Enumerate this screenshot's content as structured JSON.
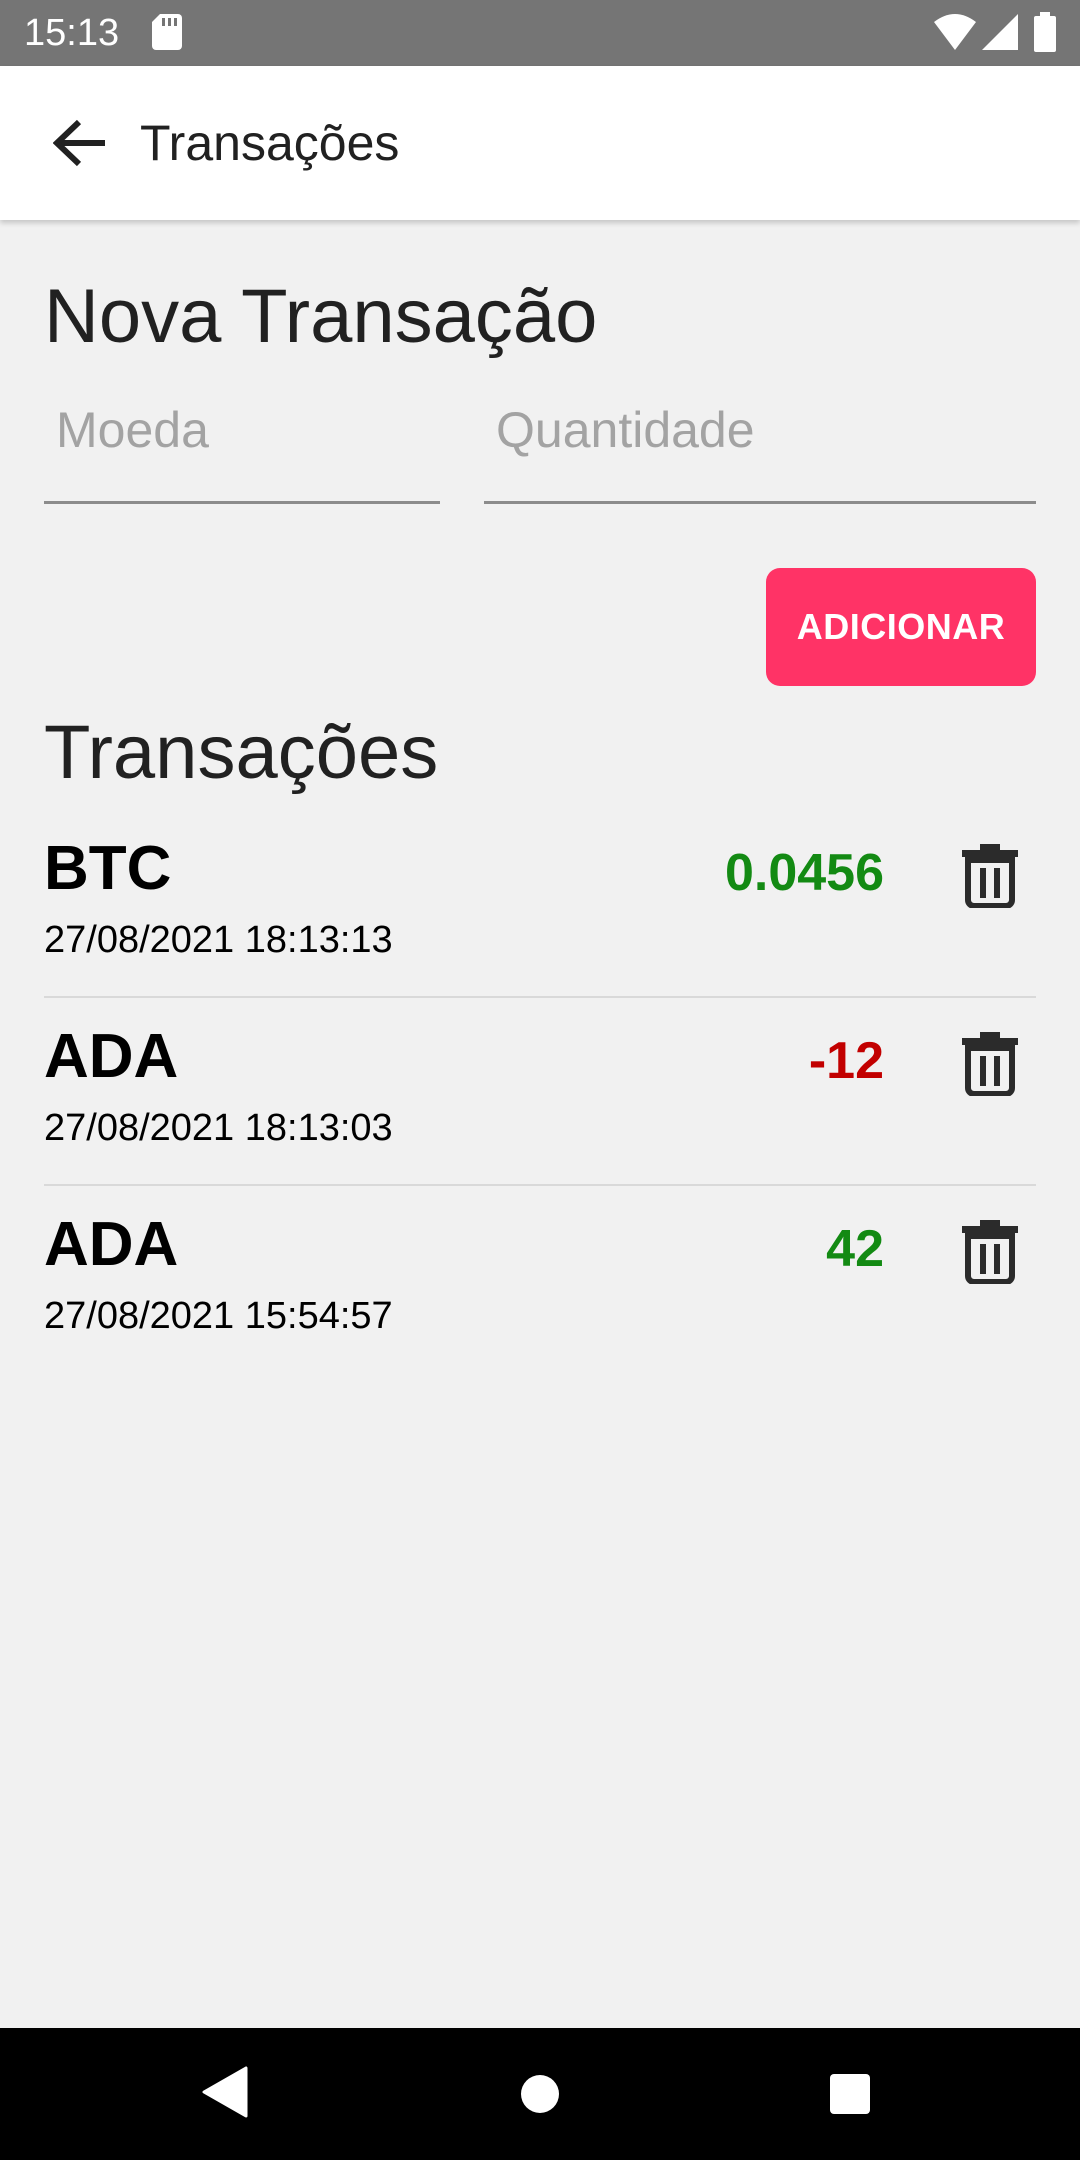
{
  "status_bar": {
    "time": "15:13"
  },
  "app_bar": {
    "title": "Transações"
  },
  "form": {
    "title": "Nova Transação",
    "coin_field": {
      "value": "",
      "placeholder": "Moeda"
    },
    "quantity_field": {
      "value": "",
      "placeholder": "Quantidade"
    },
    "add_button_label": "ADICIONAR"
  },
  "list": {
    "title": "Transações",
    "items": [
      {
        "coin": "BTC",
        "date": "27/08/2021 18:13:13",
        "amount": "0.0456",
        "sign": "positive"
      },
      {
        "coin": "ADA",
        "date": "27/08/2021 18:13:03",
        "amount": "-12",
        "sign": "negative"
      },
      {
        "coin": "ADA",
        "date": "27/08/2021 15:54:57",
        "amount": "42",
        "sign": "positive"
      }
    ]
  },
  "colors": {
    "accent": "#ff3366",
    "positive": "#138a13",
    "negative": "#c20000",
    "status_bar": "#757575"
  },
  "icons": {
    "back": "arrow-left-icon",
    "delete": "trash-icon",
    "nav_back": "triangle-back-icon",
    "nav_home": "circle-home-icon",
    "nav_recents": "square-recents-icon"
  }
}
